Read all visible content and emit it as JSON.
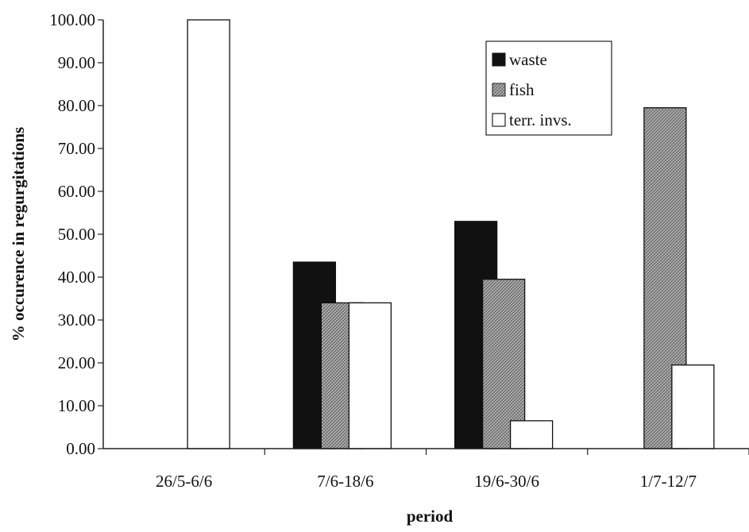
{
  "chart_data": {
    "type": "bar",
    "xlabel": "period",
    "ylabel": "% occurence in regurgitations",
    "ylim": [
      0,
      100
    ],
    "y_ticks": [
      "0.00",
      "10.00",
      "20.00",
      "30.00",
      "40.00",
      "50.00",
      "60.00",
      "70.00",
      "80.00",
      "90.00",
      "100.00"
    ],
    "categories": [
      "26/5-6/6",
      "7/6-18/6",
      "19/6-30/6",
      "1/7-12/7"
    ],
    "series": [
      {
        "name": "waste",
        "values": [
          0,
          43.5,
          53,
          0
        ],
        "color": "#111111",
        "pattern": "solid"
      },
      {
        "name": "fish",
        "values": [
          0,
          34,
          39.5,
          79.5
        ],
        "color": "#9a9a9a",
        "pattern": "crosshatch"
      },
      {
        "name": "terr. invs.",
        "values": [
          100,
          34,
          6.5,
          19.5
        ],
        "color": "#ffffff",
        "pattern": "solid"
      }
    ],
    "grid": false,
    "legend_position": "top-right"
  }
}
